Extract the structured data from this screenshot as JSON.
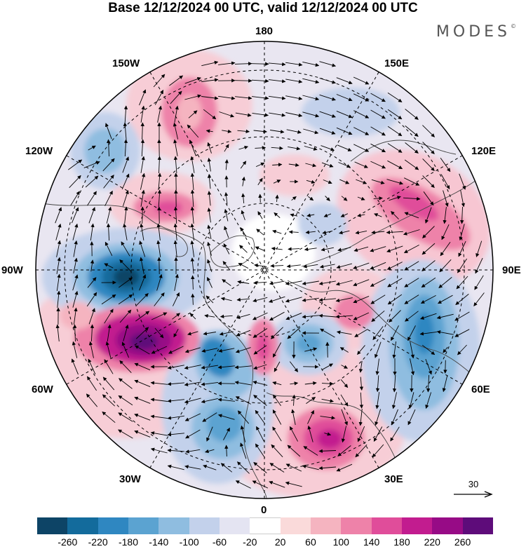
{
  "title": "Base 12/12/2024 00 UTC, valid 12/12/2024 00 UTC",
  "brand": "MODES",
  "brand_mark": "©",
  "map": {
    "projection": "north-polar-stereographic",
    "longitude_labels": {
      "n180": "180",
      "w150": "150W",
      "e150": "150E",
      "w120": "120W",
      "e120": "120E",
      "w90": "90W",
      "e90": "90E",
      "w60": "60W",
      "e60": "60E",
      "w30": "30W",
      "e30": "30E",
      "s0": "0"
    },
    "reference_vector_label": "30"
  },
  "colorbar": {
    "colors": [
      "#0d4466",
      "#136b9c",
      "#2f87c1",
      "#5ba3d1",
      "#8fbde0",
      "#c3d1eb",
      "#e4e4f2",
      "#ffffff",
      "#fadada",
      "#f5b4c0",
      "#ee82a9",
      "#e04d9a",
      "#c21c8f",
      "#970b86",
      "#5e0c7a"
    ],
    "ticks": [
      "-260",
      "-220",
      "-180",
      "-140",
      "-100",
      "-60",
      "-20",
      "20",
      "60",
      "100",
      "140",
      "180",
      "220",
      "260"
    ]
  }
}
